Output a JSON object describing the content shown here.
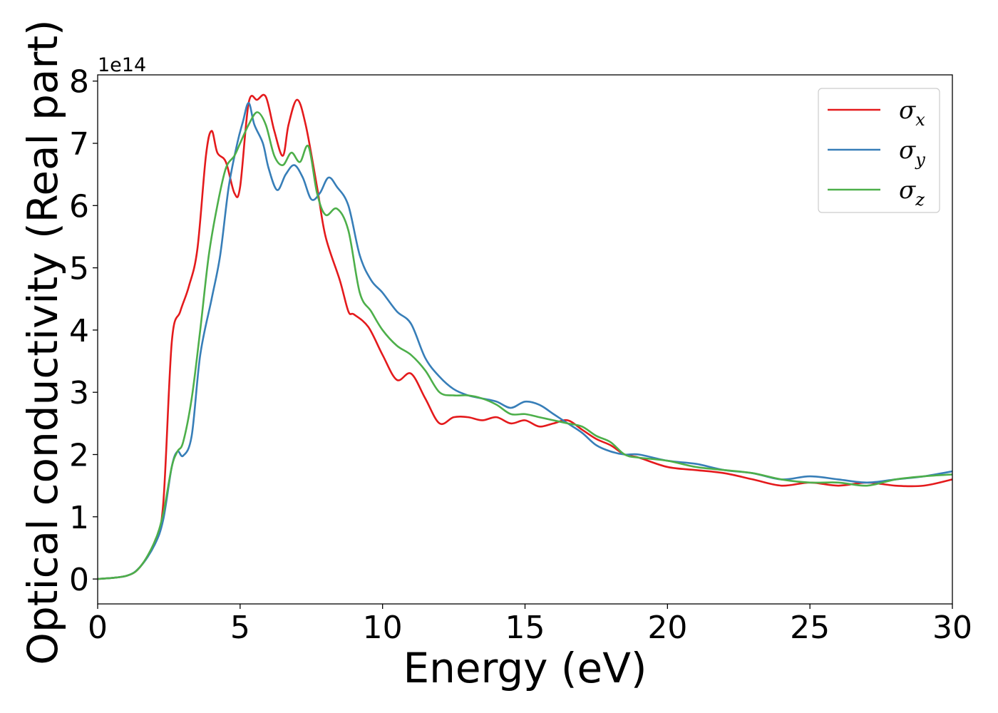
{
  "chart_data": {
    "type": "line",
    "xlabel": "Energy (eV)",
    "ylabel": "Optical conductivity (Real part)",
    "y_offset_text": "1e14",
    "xlim": [
      0,
      30
    ],
    "ylim": [
      -0.4,
      8.1
    ],
    "x_ticks": [
      "0",
      "5",
      "10",
      "15",
      "20",
      "25",
      "30"
    ],
    "y_ticks": [
      "0",
      "1",
      "2",
      "3",
      "4",
      "5",
      "6",
      "7",
      "8"
    ],
    "grid": false,
    "legend_placement": "top-right",
    "series": [
      {
        "name": "σx",
        "label_base": "σ",
        "label_sub": "x",
        "color": "#e41a1c",
        "x": [
          0,
          1.0,
          1.5,
          2.0,
          2.3,
          2.6,
          2.9,
          3.2,
          3.5,
          3.8,
          4.0,
          4.2,
          4.5,
          4.8,
          5.0,
          5.3,
          5.6,
          5.9,
          6.2,
          6.5,
          6.7,
          7.0,
          7.3,
          7.7,
          8.0,
          8.5,
          8.8,
          9.0,
          9.5,
          10.0,
          10.5,
          11.0,
          11.5,
          12.0,
          12.5,
          13.0,
          13.5,
          14.0,
          14.5,
          15.0,
          15.5,
          16.0,
          16.5,
          17.0,
          17.5,
          18.0,
          18.5,
          19.0,
          20.0,
          21.0,
          22.0,
          23.0,
          24.0,
          25.0,
          26.0,
          27.0,
          28.0,
          29.0,
          30.0
        ],
        "values": [
          0,
          0.05,
          0.2,
          0.6,
          1.2,
          3.8,
          4.3,
          4.7,
          5.3,
          6.8,
          7.2,
          6.85,
          6.7,
          6.2,
          6.3,
          7.65,
          7.7,
          7.75,
          7.2,
          6.8,
          7.3,
          7.7,
          7.3,
          6.3,
          5.5,
          4.8,
          4.3,
          4.25,
          4.05,
          3.6,
          3.2,
          3.3,
          2.9,
          2.5,
          2.6,
          2.6,
          2.55,
          2.6,
          2.5,
          2.55,
          2.45,
          2.5,
          2.55,
          2.4,
          2.25,
          2.15,
          2.0,
          1.95,
          1.8,
          1.75,
          1.7,
          1.6,
          1.5,
          1.55,
          1.5,
          1.55,
          1.5,
          1.5,
          1.6
        ]
      },
      {
        "name": "σy",
        "label_base": "σ",
        "label_sub": "y",
        "color": "#377eb8",
        "x": [
          0,
          1.0,
          1.5,
          2.0,
          2.3,
          2.6,
          2.8,
          3.0,
          3.3,
          3.6,
          4.0,
          4.3,
          4.6,
          4.9,
          5.1,
          5.3,
          5.5,
          5.8,
          6.0,
          6.3,
          6.6,
          6.9,
          7.2,
          7.5,
          7.8,
          8.1,
          8.4,
          8.8,
          9.2,
          9.6,
          10.0,
          10.5,
          11.0,
          11.5,
          12.0,
          12.5,
          13.0,
          13.5,
          14.0,
          14.5,
          15.0,
          15.5,
          16.0,
          16.5,
          17.0,
          17.5,
          18.0,
          18.5,
          19.0,
          20.0,
          21.0,
          22.0,
          23.0,
          24.0,
          25.0,
          26.0,
          27.0,
          28.0,
          29.0,
          30.0
        ],
        "values": [
          0,
          0.05,
          0.2,
          0.55,
          0.95,
          1.8,
          2.05,
          1.98,
          2.3,
          3.6,
          4.5,
          5.2,
          6.3,
          7.0,
          7.35,
          7.65,
          7.3,
          7.0,
          6.6,
          6.25,
          6.5,
          6.65,
          6.45,
          6.1,
          6.2,
          6.45,
          6.3,
          6.0,
          5.2,
          4.8,
          4.6,
          4.3,
          4.1,
          3.55,
          3.25,
          3.05,
          2.95,
          2.9,
          2.85,
          2.75,
          2.85,
          2.8,
          2.65,
          2.5,
          2.35,
          2.15,
          2.05,
          2.0,
          2.0,
          1.9,
          1.85,
          1.75,
          1.7,
          1.6,
          1.65,
          1.6,
          1.55,
          1.6,
          1.65,
          1.73
        ]
      },
      {
        "name": "σz",
        "label_base": "σ",
        "label_sub": "z",
        "color": "#4daf4a",
        "x": [
          0,
          1.0,
          1.5,
          2.0,
          2.3,
          2.6,
          2.8,
          3.0,
          3.3,
          3.6,
          3.9,
          4.2,
          4.5,
          4.8,
          5.0,
          5.3,
          5.6,
          5.9,
          6.2,
          6.5,
          6.8,
          7.1,
          7.4,
          7.7,
          8.0,
          8.4,
          8.8,
          9.2,
          9.6,
          10.0,
          10.5,
          11.0,
          11.5,
          12.0,
          12.5,
          13.0,
          13.5,
          14.0,
          14.5,
          15.0,
          15.5,
          16.0,
          16.5,
          17.0,
          17.5,
          18.0,
          18.5,
          19.0,
          20.0,
          21.0,
          22.0,
          23.0,
          24.0,
          25.0,
          26.0,
          27.0,
          28.0,
          29.0,
          30.0
        ],
        "values": [
          0,
          0.05,
          0.2,
          0.6,
          1.05,
          1.8,
          2.05,
          2.2,
          2.9,
          4.0,
          5.2,
          6.0,
          6.6,
          6.8,
          7.0,
          7.3,
          7.5,
          7.3,
          6.8,
          6.65,
          6.85,
          6.7,
          6.95,
          6.2,
          5.85,
          5.95,
          5.6,
          4.6,
          4.3,
          4.0,
          3.75,
          3.6,
          3.35,
          3.0,
          2.95,
          2.95,
          2.9,
          2.8,
          2.65,
          2.65,
          2.6,
          2.55,
          2.5,
          2.45,
          2.3,
          2.2,
          2.0,
          1.95,
          1.9,
          1.8,
          1.75,
          1.7,
          1.6,
          1.55,
          1.55,
          1.5,
          1.6,
          1.65,
          1.68
        ]
      }
    ]
  }
}
